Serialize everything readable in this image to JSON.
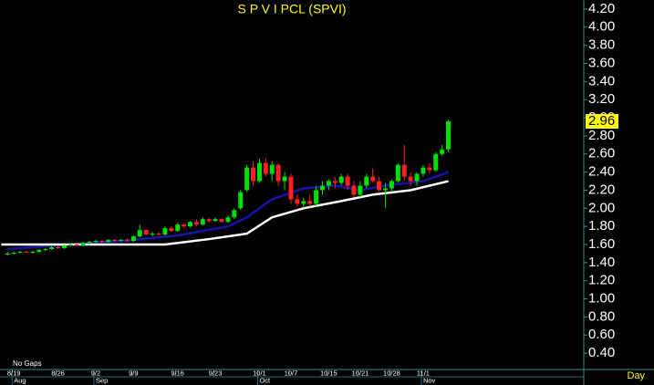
{
  "chart_data": {
    "type": "candlestick",
    "title": "S P V I PCL (SPVI)",
    "up_color": "#00e000",
    "down_color": "#ff2020",
    "candles": [
      {
        "open": 1.5,
        "high": 1.52,
        "low": 1.48,
        "close": 1.5
      },
      {
        "open": 1.5,
        "high": 1.52,
        "low": 1.49,
        "close": 1.51
      },
      {
        "open": 1.51,
        "high": 1.53,
        "low": 1.5,
        "close": 1.52
      },
      {
        "open": 1.52,
        "high": 1.53,
        "low": 1.51,
        "close": 1.51
      },
      {
        "open": 1.51,
        "high": 1.53,
        "low": 1.5,
        "close": 1.52
      },
      {
        "open": 1.52,
        "high": 1.55,
        "low": 1.51,
        "close": 1.54
      },
      {
        "open": 1.54,
        "high": 1.56,
        "low": 1.53,
        "close": 1.55
      },
      {
        "open": 1.55,
        "high": 1.58,
        "low": 1.54,
        "close": 1.57
      },
      {
        "open": 1.57,
        "high": 1.58,
        "low": 1.55,
        "close": 1.56
      },
      {
        "open": 1.56,
        "high": 1.6,
        "low": 1.55,
        "close": 1.59
      },
      {
        "open": 1.59,
        "high": 1.61,
        "low": 1.58,
        "close": 1.6
      },
      {
        "open": 1.6,
        "high": 1.62,
        "low": 1.58,
        "close": 1.59
      },
      {
        "open": 1.59,
        "high": 1.63,
        "low": 1.58,
        "close": 1.62
      },
      {
        "open": 1.62,
        "high": 1.64,
        "low": 1.6,
        "close": 1.63
      },
      {
        "open": 1.63,
        "high": 1.65,
        "low": 1.62,
        "close": 1.64
      },
      {
        "open": 1.64,
        "high": 1.65,
        "low": 1.62,
        "close": 1.63
      },
      {
        "open": 1.63,
        "high": 1.66,
        "low": 1.62,
        "close": 1.65
      },
      {
        "open": 1.65,
        "high": 1.66,
        "low": 1.63,
        "close": 1.64
      },
      {
        "open": 1.64,
        "high": 1.66,
        "low": 1.63,
        "close": 1.65
      },
      {
        "open": 1.65,
        "high": 1.67,
        "low": 1.63,
        "close": 1.64
      },
      {
        "open": 1.64,
        "high": 1.7,
        "low": 1.63,
        "close": 1.69
      },
      {
        "open": 1.69,
        "high": 1.82,
        "low": 1.68,
        "close": 1.76
      },
      {
        "open": 1.76,
        "high": 1.77,
        "low": 1.7,
        "close": 1.71
      },
      {
        "open": 1.71,
        "high": 1.74,
        "low": 1.69,
        "close": 1.72
      },
      {
        "open": 1.72,
        "high": 1.74,
        "low": 1.7,
        "close": 1.71
      },
      {
        "open": 1.71,
        "high": 1.8,
        "low": 1.7,
        "close": 1.78
      },
      {
        "open": 1.78,
        "high": 1.8,
        "low": 1.74,
        "close": 1.75
      },
      {
        "open": 1.75,
        "high": 1.84,
        "low": 1.74,
        "close": 1.82
      },
      {
        "open": 1.82,
        "high": 1.84,
        "low": 1.78,
        "close": 1.8
      },
      {
        "open": 1.8,
        "high": 1.86,
        "low": 1.79,
        "close": 1.85
      },
      {
        "open": 1.85,
        "high": 1.88,
        "low": 1.8,
        "close": 1.82
      },
      {
        "open": 1.82,
        "high": 1.9,
        "low": 1.81,
        "close": 1.88
      },
      {
        "open": 1.88,
        "high": 1.89,
        "low": 1.84,
        "close": 1.86
      },
      {
        "open": 1.86,
        "high": 1.9,
        "low": 1.85,
        "close": 1.88
      },
      {
        "open": 1.88,
        "high": 1.89,
        "low": 1.84,
        "close": 1.85
      },
      {
        "open": 1.85,
        "high": 1.92,
        "low": 1.84,
        "close": 1.9
      },
      {
        "open": 1.9,
        "high": 2.0,
        "low": 1.88,
        "close": 1.98
      },
      {
        "open": 2.0,
        "high": 2.2,
        "low": 1.98,
        "close": 2.18
      },
      {
        "open": 2.2,
        "high": 2.48,
        "low": 2.18,
        "close": 2.45
      },
      {
        "open": 2.45,
        "high": 2.52,
        "low": 2.25,
        "close": 2.3
      },
      {
        "open": 2.3,
        "high": 2.55,
        "low": 2.28,
        "close": 2.5
      },
      {
        "open": 2.5,
        "high": 2.55,
        "low": 2.35,
        "close": 2.38
      },
      {
        "open": 2.38,
        "high": 2.52,
        "low": 2.3,
        "close": 2.48
      },
      {
        "open": 2.48,
        "high": 2.5,
        "low": 2.25,
        "close": 2.3
      },
      {
        "open": 2.3,
        "high": 2.4,
        "low": 2.2,
        "close": 2.35
      },
      {
        "open": 2.35,
        "high": 2.38,
        "low": 2.05,
        "close": 2.1
      },
      {
        "open": 2.1,
        "high": 2.15,
        "low": 2.02,
        "close": 2.05
      },
      {
        "open": 2.05,
        "high": 2.12,
        "low": 2.0,
        "close": 2.08
      },
      {
        "open": 2.08,
        "high": 2.15,
        "low": 2.02,
        "close": 2.05
      },
      {
        "open": 2.05,
        "high": 2.25,
        "low": 2.02,
        "close": 2.2
      },
      {
        "open": 2.2,
        "high": 2.3,
        "low": 2.15,
        "close": 2.25
      },
      {
        "open": 2.25,
        "high": 2.32,
        "low": 2.2,
        "close": 2.3
      },
      {
        "open": 2.3,
        "high": 2.35,
        "low": 2.22,
        "close": 2.28
      },
      {
        "open": 2.28,
        "high": 2.38,
        "low": 2.25,
        "close": 2.35
      },
      {
        "open": 2.35,
        "high": 2.38,
        "low": 2.2,
        "close": 2.25
      },
      {
        "open": 2.25,
        "high": 2.3,
        "low": 2.12,
        "close": 2.15
      },
      {
        "open": 2.15,
        "high": 2.3,
        "low": 2.12,
        "close": 2.25
      },
      {
        "open": 2.25,
        "high": 2.38,
        "low": 2.22,
        "close": 2.35
      },
      {
        "open": 2.35,
        "high": 2.44,
        "low": 2.28,
        "close": 2.3
      },
      {
        "open": 2.3,
        "high": 2.35,
        "low": 2.18,
        "close": 2.2
      },
      {
        "open": 2.2,
        "high": 2.28,
        "low": 2.0,
        "close": 2.22
      },
      {
        "open": 2.22,
        "high": 2.32,
        "low": 2.18,
        "close": 2.3
      },
      {
        "open": 2.3,
        "high": 2.5,
        "low": 2.28,
        "close": 2.48
      },
      {
        "open": 2.48,
        "high": 2.7,
        "low": 2.3,
        "close": 2.35
      },
      {
        "open": 2.35,
        "high": 2.4,
        "low": 2.25,
        "close": 2.3
      },
      {
        "open": 2.3,
        "high": 2.4,
        "low": 2.25,
        "close": 2.38
      },
      {
        "open": 2.38,
        "high": 2.48,
        "low": 2.35,
        "close": 2.45
      },
      {
        "open": 2.45,
        "high": 2.5,
        "low": 2.38,
        "close": 2.42
      },
      {
        "open": 2.42,
        "high": 2.62,
        "low": 2.4,
        "close": 2.6
      },
      {
        "open": 2.6,
        "high": 2.7,
        "low": 2.58,
        "close": 2.65
      },
      {
        "open": 2.65,
        "high": 2.98,
        "low": 2.62,
        "close": 2.96
      }
    ],
    "lines": [
      {
        "color": "#1414a8",
        "x": [
          0,
          10,
          20,
          27,
          35,
          38,
          42,
          47,
          52,
          56,
          60,
          66,
          70
        ],
        "values": [
          1.55,
          1.6,
          1.65,
          1.7,
          1.8,
          1.9,
          2.1,
          2.22,
          2.25,
          2.2,
          2.25,
          2.3,
          2.4
        ]
      },
      {
        "color": "#ffffff",
        "x": [
          -1,
          10,
          20,
          25,
          32,
          38,
          42,
          47,
          53,
          58,
          64,
          70
        ],
        "values": [
          1.6,
          1.6,
          1.6,
          1.6,
          1.66,
          1.72,
          1.9,
          2.0,
          2.08,
          2.15,
          2.2,
          2.3
        ]
      }
    ],
    "last_price": 2.96,
    "note": "No Gaps",
    "period": "Day",
    "xlim": [
      -1.2,
      91.5
    ],
    "xticks": [
      {
        "value": 1,
        "label": "8/19"
      },
      {
        "value": 8,
        "label": "8/26"
      },
      {
        "value": 14,
        "label": "9/2"
      },
      {
        "value": 20,
        "label": "9/9"
      },
      {
        "value": 27,
        "label": "9/16"
      },
      {
        "value": 33,
        "label": "9/23"
      },
      {
        "value": 40,
        "label": "10/1"
      },
      {
        "value": 45,
        "label": "10/7"
      },
      {
        "value": 51,
        "label": "10/15"
      },
      {
        "value": 56,
        "label": "10/21"
      },
      {
        "value": 61,
        "label": "10/28"
      },
      {
        "value": 66,
        "label": "11/1"
      }
    ],
    "months": [
      {
        "value": 1,
        "label": "Aug"
      },
      {
        "value": 14,
        "label": "Sep"
      },
      {
        "value": 40,
        "label": "Oct"
      },
      {
        "value": 66,
        "label": "Nov"
      }
    ],
    "ylim": [
      0.22,
      4.3
    ],
    "yticks": [
      {
        "value": 0.4,
        "label": "0.40"
      },
      {
        "value": 0.6,
        "label": "0.60"
      },
      {
        "value": 0.8,
        "label": "0.80"
      },
      {
        "value": 1.0,
        "label": "1.00"
      },
      {
        "value": 1.2,
        "label": "1.20"
      },
      {
        "value": 1.4,
        "label": "1.40"
      },
      {
        "value": 1.6,
        "label": "1.60"
      },
      {
        "value": 1.8,
        "label": "1.80"
      },
      {
        "value": 2.0,
        "label": "2.00"
      },
      {
        "value": 2.2,
        "label": "2.20"
      },
      {
        "value": 2.4,
        "label": "2.40"
      },
      {
        "value": 2.6,
        "label": "2.60"
      },
      {
        "value": 2.8,
        "label": "2.80"
      },
      {
        "value": 3.0,
        "label": "3.00"
      },
      {
        "value": 3.2,
        "label": "3.20"
      },
      {
        "value": 3.4,
        "label": "3.40"
      },
      {
        "value": 3.6,
        "label": "3.60"
      },
      {
        "value": 3.8,
        "label": "3.80"
      },
      {
        "value": 4.0,
        "label": "4.00"
      },
      {
        "value": 4.2,
        "label": "4.20"
      }
    ]
  }
}
